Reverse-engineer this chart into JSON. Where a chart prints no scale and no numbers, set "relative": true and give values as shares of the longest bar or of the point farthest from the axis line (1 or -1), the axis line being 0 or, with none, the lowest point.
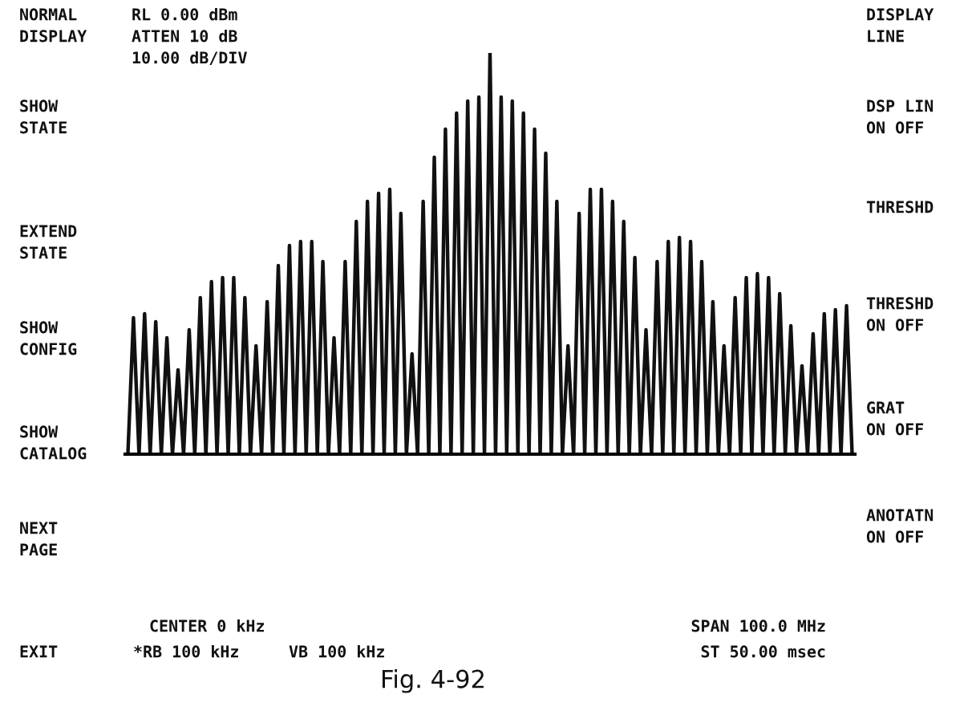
{
  "chart_data": {
    "type": "line",
    "relative": true,
    "color": "#111111",
    "categories": [
      null,
      null,
      null,
      null,
      null,
      null,
      null,
      null,
      null,
      null,
      null,
      null,
      null,
      null,
      null,
      null,
      null,
      null,
      null,
      null,
      null,
      null,
      null,
      null,
      null,
      null,
      null,
      null,
      null,
      null,
      null,
      null,
      null,
      null,
      null,
      null,
      null,
      null,
      null,
      null,
      null,
      null,
      null,
      null,
      null,
      null,
      null,
      null,
      null,
      null,
      null,
      null,
      null,
      null,
      null,
      null,
      null,
      null,
      null,
      null,
      null,
      null,
      null,
      null,
      null,
      null,
      null,
      null,
      null,
      null,
      null,
      null,
      null,
      null,
      null,
      null,
      null,
      null,
      null,
      null,
      null,
      null,
      null,
      null,
      null,
      null,
      null,
      null,
      null,
      null,
      null,
      null,
      null,
      null,
      null,
      null,
      null,
      null,
      null,
      null,
      null,
      null,
      null,
      null,
      null,
      null,
      null,
      null,
      null,
      null,
      null,
      null,
      null,
      null,
      null,
      null,
      null,
      null,
      null,
      null,
      null,
      null,
      null,
      null,
      null,
      null,
      null,
      null,
      null,
      null,
      null
    ],
    "values": [
      0,
      0.34,
      0,
      0.35,
      0,
      0.33,
      0,
      0.29,
      0,
      0.21,
      0,
      0.31,
      0,
      0.39,
      0,
      0.43,
      0,
      0.44,
      0,
      0.44,
      0,
      0.39,
      0,
      0.27,
      0,
      0.38,
      0,
      0.47,
      0,
      0.52,
      0,
      0.53,
      0,
      0.53,
      0,
      0.48,
      0,
      0.29,
      0,
      0.48,
      0,
      0.58,
      0,
      0.63,
      0,
      0.65,
      0,
      0.66,
      0,
      0.6,
      0,
      0.25,
      0,
      0.63,
      0,
      0.74,
      0,
      0.81,
      0,
      0.85,
      0,
      0.88,
      0,
      0.89,
      0,
      1.0,
      0,
      0.89,
      0,
      0.88,
      0,
      0.85,
      0,
      0.81,
      0,
      0.75,
      0,
      0.63,
      0,
      0.27,
      0,
      0.6,
      0,
      0.66,
      0,
      0.66,
      0,
      0.63,
      0,
      0.58,
      0,
      0.49,
      0,
      0.31,
      0,
      0.48,
      0,
      0.53,
      0,
      0.54,
      0,
      0.53,
      0,
      0.48,
      0,
      0.38,
      0,
      0.27,
      0,
      0.39,
      0,
      0.44,
      0,
      0.45,
      0,
      0.44,
      0,
      0.4,
      0,
      0.32,
      0,
      0.22,
      0,
      0.3,
      0,
      0.35,
      0,
      0.36,
      0,
      0.37,
      0
    ],
    "annotations": [
      "NORMAL\nDISPLAY",
      "RL 0.00 dBm\nATTEN 10 dB\n10.00 dB/DIV",
      "SHOW\nSTATE",
      "EXTEND\nSTATE",
      "SHOW\nCONFIG",
      "SHOW\nCATALOG",
      "NEXT\nPAGE",
      "EXIT",
      "CENTER 0 kHz",
      "*RB 100 kHz",
      "VB 100 kHz",
      "SPAN 100.0 MHz",
      "ST 50.00 msec",
      "DISPLAY\nLINE",
      "DSP LIN\nON OFF",
      "THRESHD",
      "THRESHD\nON OFF",
      "GRAT\nON OFF",
      "ANOTATN\nON OFF",
      "Fig. 4-92"
    ]
  }
}
